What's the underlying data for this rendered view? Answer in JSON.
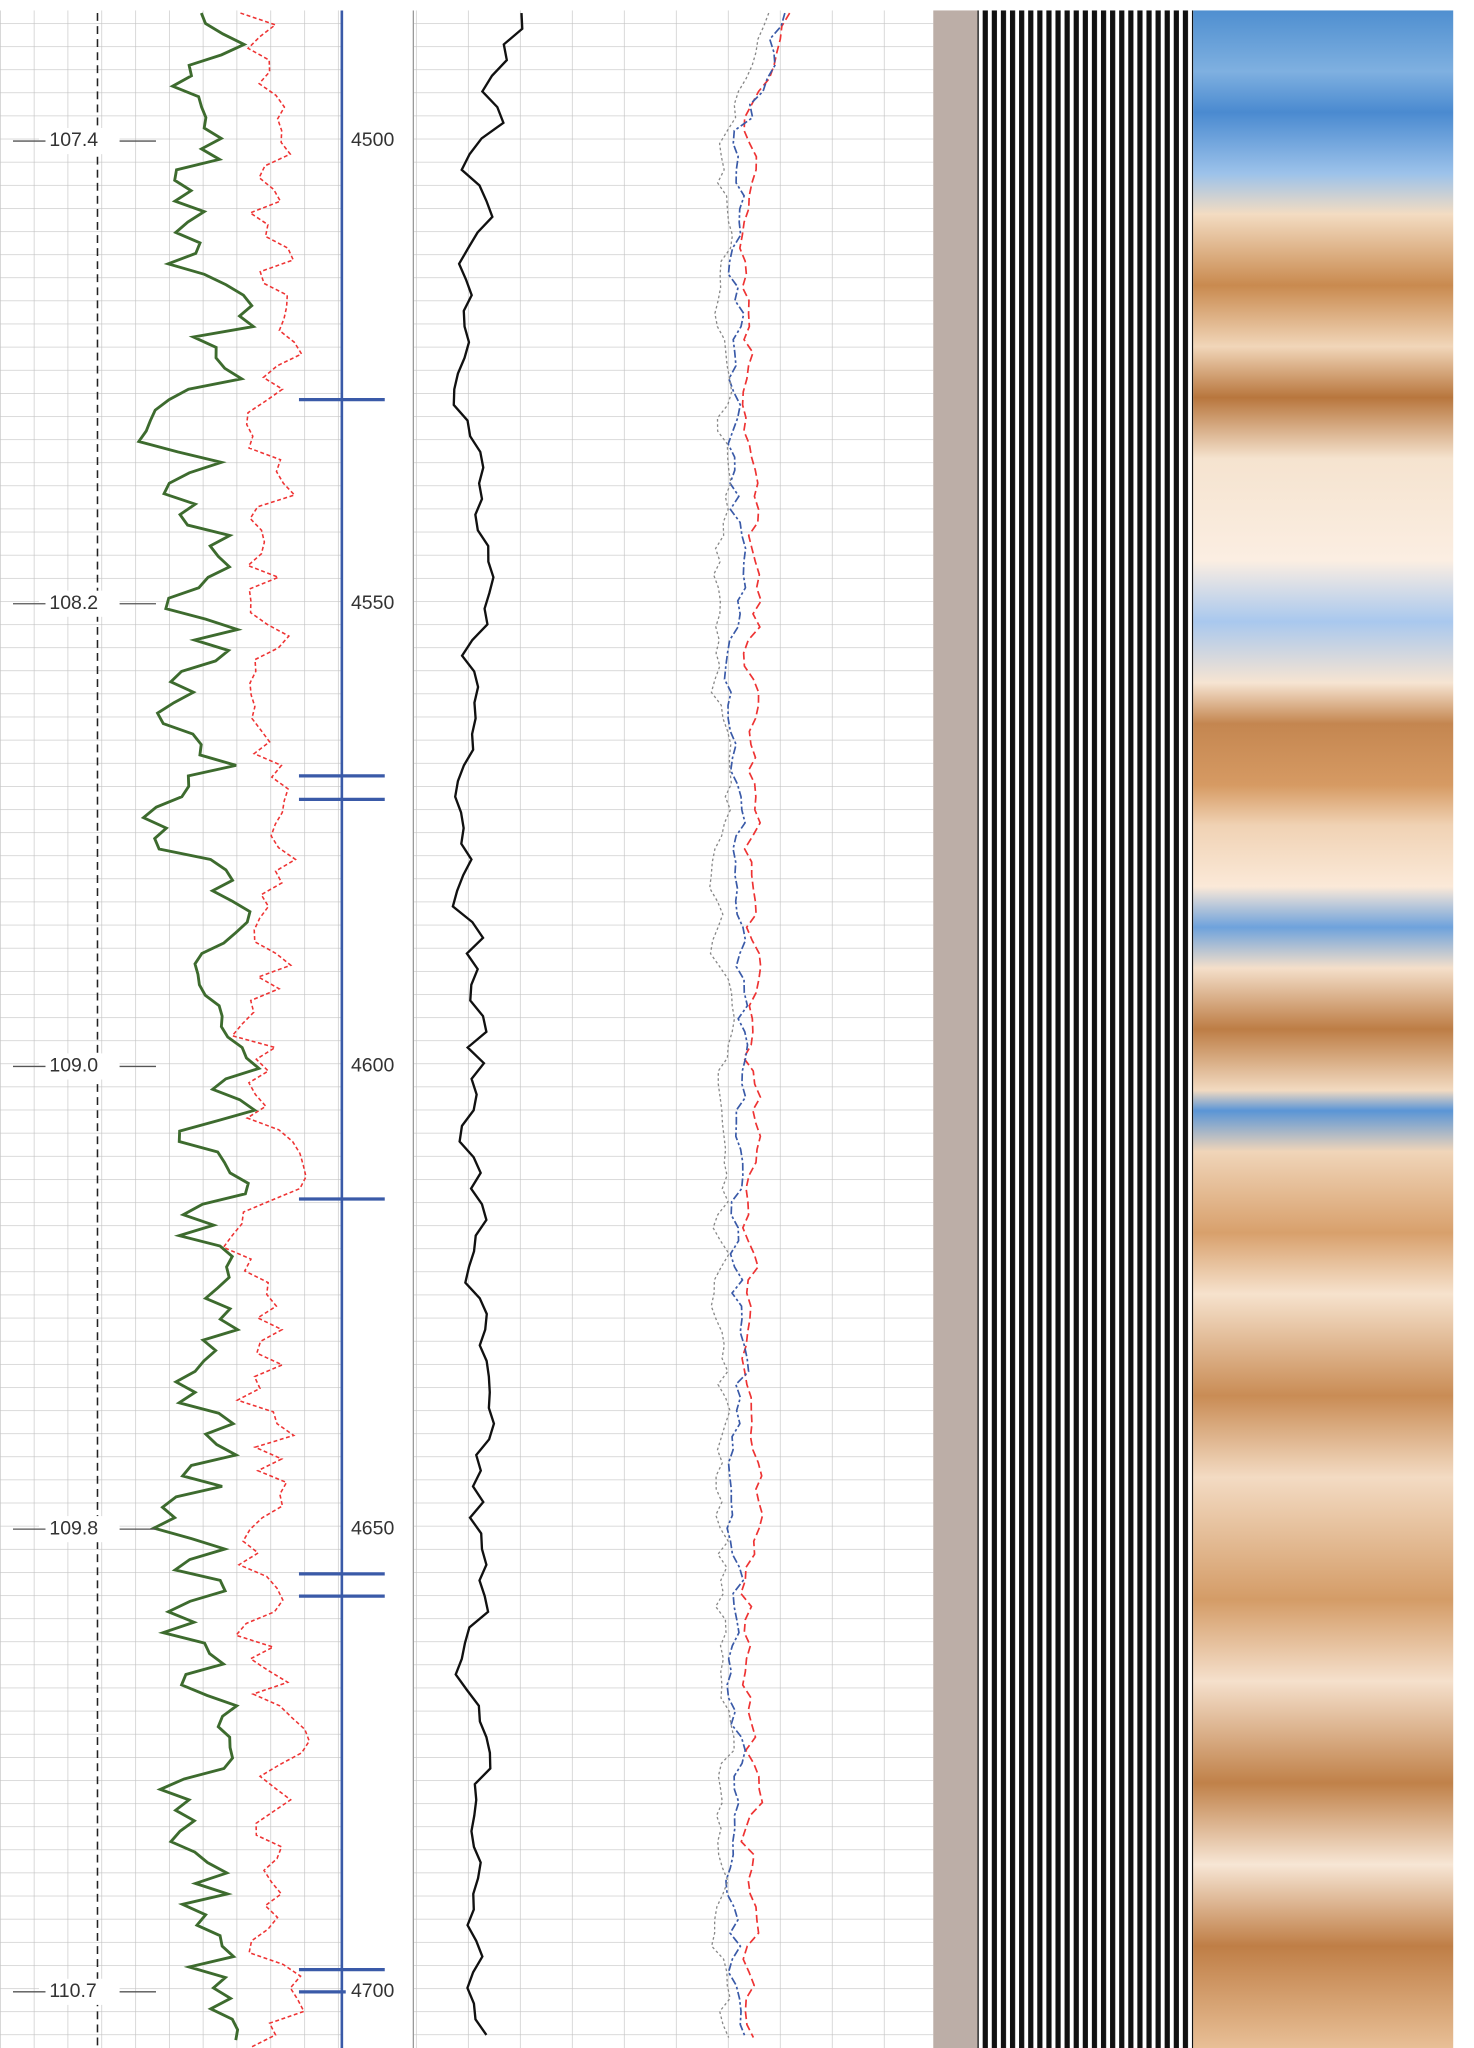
{
  "time_track": {
    "labels": [
      "107.4",
      "108.2",
      "109.0",
      "109.8",
      "110.7"
    ]
  },
  "depth_track": {
    "labels": [
      4500,
      4550,
      4600,
      4650,
      4700
    ]
  }
}
